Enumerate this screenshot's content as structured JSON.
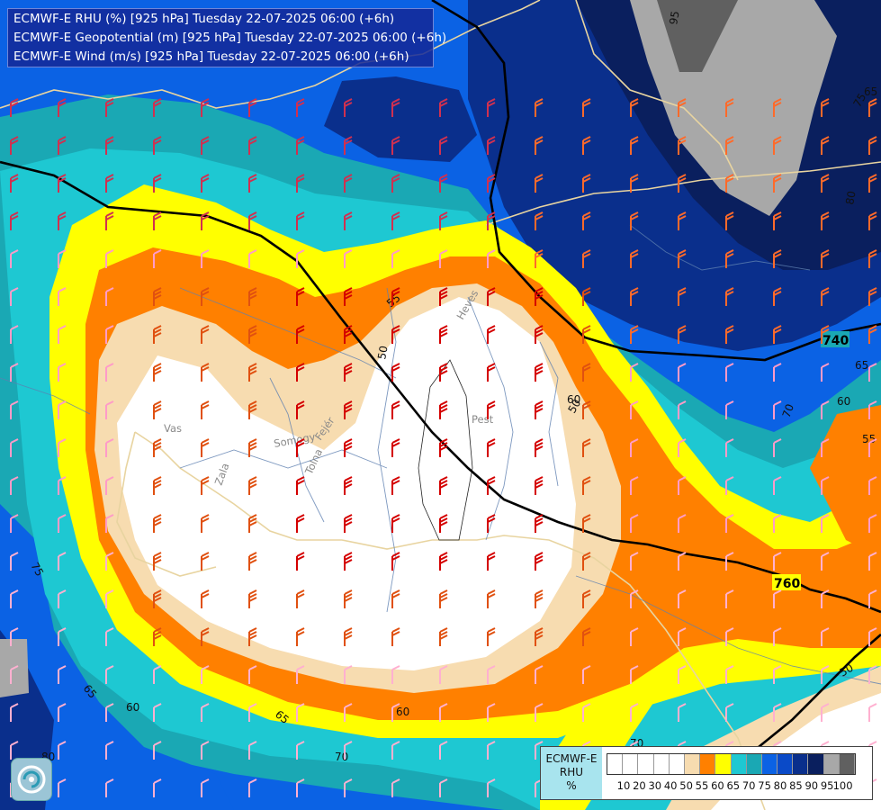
{
  "titles": [
    "ECMWF-E RHU (%) [925 hPa] Tuesday 22-07-2025 06:00 (+6h)",
    "ECMWF-E Geopotential (m) [925 hPa] Tuesday 22-07-2025 06:00 (+6h)",
    "ECMWF-E Wind (m/s) [925 hPa] Tuesday 22-07-2025 06:00 (+6h)"
  ],
  "legend": {
    "model": "ECMWF-E",
    "variable": "RHU",
    "unit": "%",
    "colors": [
      "#ffffff",
      "#ffffff",
      "#ffffff",
      "#ffffff",
      "#ffffff",
      "#f7dcb0",
      "#ff8000",
      "#ffff00",
      "#1ec8d2",
      "#1aa8b4",
      "#0b62e4",
      "#0a4ac8",
      "#0a2f8c",
      "#0a1f5e",
      "#a8a8a8",
      "#606060"
    ],
    "ticks": [
      "10",
      "20",
      "30",
      "40",
      "50",
      "55",
      "60",
      "65",
      "70",
      "75",
      "80",
      "85",
      "90",
      "95",
      "100"
    ]
  },
  "geopotential_labels": [
    "740",
    "760"
  ],
  "rhu_contour_labels": [
    "95",
    "75",
    "80",
    "65",
    "60",
    "55",
    "70",
    "50",
    "75",
    "65",
    "60",
    "80",
    "70",
    "55",
    "50",
    "65",
    "65",
    "50",
    "60",
    "60",
    "70"
  ],
  "place_labels": [
    "Vas",
    "Zala",
    "Somogy",
    "Tolna",
    "Fejér",
    "Pest",
    "Heves"
  ],
  "logo": "logo-icon"
}
